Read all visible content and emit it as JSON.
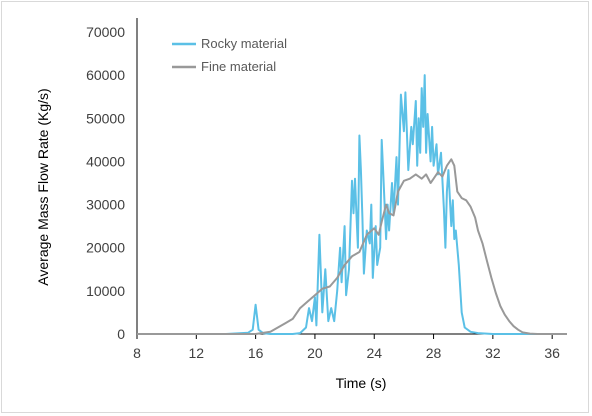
{
  "chart_data": {
    "type": "line",
    "title": "",
    "xlabel": "Time (s)",
    "ylabel": "Average Mass Flow Rate (Kg/s)",
    "xlim": [
      8,
      37
    ],
    "ylim": [
      0,
      70000
    ],
    "xticks": [
      8,
      12,
      16,
      20,
      24,
      28,
      32,
      36
    ],
    "yticks": [
      0,
      10000,
      20000,
      30000,
      40000,
      50000,
      60000,
      70000
    ],
    "grid": false,
    "legend_position": "top-left",
    "series": [
      {
        "name": "Rocky material",
        "color": "#5bc0e6",
        "points": [
          [
            8,
            0
          ],
          [
            14,
            0
          ],
          [
            15.5,
            300
          ],
          [
            15.8,
            1000
          ],
          [
            16.0,
            6800
          ],
          [
            16.2,
            1000
          ],
          [
            16.5,
            200
          ],
          [
            17,
            0
          ],
          [
            18.5,
            0
          ],
          [
            19.0,
            200
          ],
          [
            19.4,
            1500
          ],
          [
            19.6,
            6000
          ],
          [
            19.8,
            3000
          ],
          [
            20.0,
            8500
          ],
          [
            20.1,
            2000
          ],
          [
            20.3,
            23000
          ],
          [
            20.5,
            5000
          ],
          [
            20.7,
            15000
          ],
          [
            20.9,
            3000
          ],
          [
            21.1,
            6000
          ],
          [
            21.3,
            3000
          ],
          [
            21.5,
            10000
          ],
          [
            21.7,
            20000
          ],
          [
            21.8,
            12000
          ],
          [
            22.0,
            25000
          ],
          [
            22.1,
            9000
          ],
          [
            22.3,
            15000
          ],
          [
            22.5,
            35500
          ],
          [
            22.6,
            28000
          ],
          [
            22.7,
            36000
          ],
          [
            22.8,
            28000
          ],
          [
            22.9,
            20000
          ],
          [
            23.0,
            46000
          ],
          [
            23.1,
            38000
          ],
          [
            23.2,
            27000
          ],
          [
            23.3,
            14000
          ],
          [
            23.5,
            24000
          ],
          [
            23.7,
            21000
          ],
          [
            23.8,
            30000
          ],
          [
            23.9,
            13000
          ],
          [
            24.1,
            25000
          ],
          [
            24.2,
            16000
          ],
          [
            24.4,
            20000
          ],
          [
            24.5,
            45000
          ],
          [
            24.6,
            38000
          ],
          [
            24.8,
            22000
          ],
          [
            24.9,
            30000
          ],
          [
            25.0,
            24000
          ],
          [
            25.2,
            35000
          ],
          [
            25.3,
            28000
          ],
          [
            25.5,
            41000
          ],
          [
            25.6,
            30000
          ],
          [
            25.8,
            55500
          ],
          [
            26.0,
            47000
          ],
          [
            26.1,
            56000
          ],
          [
            26.3,
            38000
          ],
          [
            26.5,
            48000
          ],
          [
            26.6,
            44000
          ],
          [
            26.8,
            54000
          ],
          [
            26.9,
            39000
          ],
          [
            27.0,
            50000
          ],
          [
            27.1,
            42000
          ],
          [
            27.2,
            57000
          ],
          [
            27.3,
            48000
          ],
          [
            27.4,
            60000
          ],
          [
            27.5,
            42000
          ],
          [
            27.6,
            51000
          ],
          [
            27.8,
            40000
          ],
          [
            27.9,
            48000
          ],
          [
            28.0,
            39000
          ],
          [
            28.2,
            44000
          ],
          [
            28.3,
            37000
          ],
          [
            28.5,
            42000
          ],
          [
            28.7,
            29000
          ],
          [
            28.8,
            20000
          ],
          [
            28.9,
            33000
          ],
          [
            29.0,
            38000
          ],
          [
            29.2,
            25000
          ],
          [
            29.3,
            31000
          ],
          [
            29.4,
            22000
          ],
          [
            29.5,
            24000
          ],
          [
            29.7,
            16000
          ],
          [
            29.9,
            5000
          ],
          [
            30.1,
            1500
          ],
          [
            30.5,
            500
          ],
          [
            31.0,
            200
          ],
          [
            32,
            0
          ],
          [
            37,
            0
          ]
        ]
      },
      {
        "name": "Fine material",
        "color": "#999999",
        "points": [
          [
            8,
            0
          ],
          [
            16.0,
            0
          ],
          [
            17.0,
            500
          ],
          [
            18.0,
            2500
          ],
          [
            18.5,
            3500
          ],
          [
            19.0,
            6000
          ],
          [
            19.5,
            7500
          ],
          [
            20.0,
            9000
          ],
          [
            20.5,
            10500
          ],
          [
            21.0,
            11000
          ],
          [
            21.5,
            13000
          ],
          [
            22.0,
            16000
          ],
          [
            22.5,
            18000
          ],
          [
            23.0,
            19000
          ],
          [
            23.5,
            23000
          ],
          [
            24.0,
            24500
          ],
          [
            24.3,
            23000
          ],
          [
            24.5,
            26000
          ],
          [
            24.8,
            30000
          ],
          [
            25.0,
            28000
          ],
          [
            25.3,
            27500
          ],
          [
            25.6,
            33000
          ],
          [
            26.0,
            35500
          ],
          [
            26.4,
            36000
          ],
          [
            26.8,
            37000
          ],
          [
            27.2,
            36000
          ],
          [
            27.5,
            37000
          ],
          [
            27.8,
            35000
          ],
          [
            28.0,
            36000
          ],
          [
            28.3,
            37500
          ],
          [
            28.6,
            36500
          ],
          [
            28.9,
            39000
          ],
          [
            29.2,
            40500
          ],
          [
            29.4,
            39000
          ],
          [
            29.6,
            33000
          ],
          [
            29.9,
            31500
          ],
          [
            30.2,
            31000
          ],
          [
            30.5,
            29500
          ],
          [
            30.8,
            27000
          ],
          [
            31.0,
            24000
          ],
          [
            31.3,
            21000
          ],
          [
            31.6,
            17000
          ],
          [
            31.9,
            13000
          ],
          [
            32.2,
            9500
          ],
          [
            32.5,
            6500
          ],
          [
            32.8,
            4500
          ],
          [
            33.1,
            3000
          ],
          [
            33.4,
            1800
          ],
          [
            33.7,
            1000
          ],
          [
            34.0,
            400
          ],
          [
            34.5,
            100
          ],
          [
            35,
            0
          ],
          [
            37,
            0
          ]
        ]
      }
    ]
  }
}
